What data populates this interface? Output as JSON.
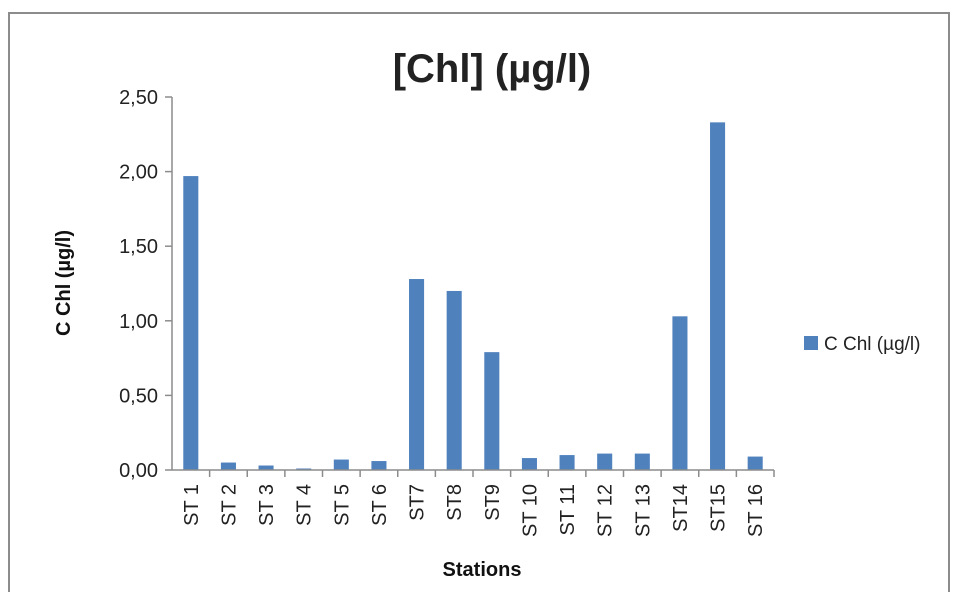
{
  "chart_data": {
    "type": "bar",
    "title": "[Chl] (µg/l)",
    "xlabel": "Stations",
    "ylabel": "C Chl (µg/l)",
    "ylim": [
      0,
      2.5
    ],
    "yticks": [
      "0,00",
      "0,50",
      "1,00",
      "1,50",
      "2,00",
      "2,50"
    ],
    "categories": [
      "ST 1",
      "ST 2",
      "ST 3",
      "ST 4",
      "ST 5",
      "ST 6",
      "ST7",
      "ST8",
      "ST9",
      "ST 10",
      "ST 11",
      "ST 12",
      "ST 13",
      "ST14",
      "ST15",
      "ST 16"
    ],
    "series": [
      {
        "name": "C Chl (µg/l)",
        "color": "#4f81bd",
        "values": [
          1.97,
          0.05,
          0.03,
          0.01,
          0.07,
          0.06,
          1.28,
          1.2,
          0.79,
          0.08,
          0.1,
          0.11,
          0.11,
          1.03,
          2.33,
          0.09
        ]
      }
    ],
    "grid": false,
    "legend_position": "right"
  }
}
